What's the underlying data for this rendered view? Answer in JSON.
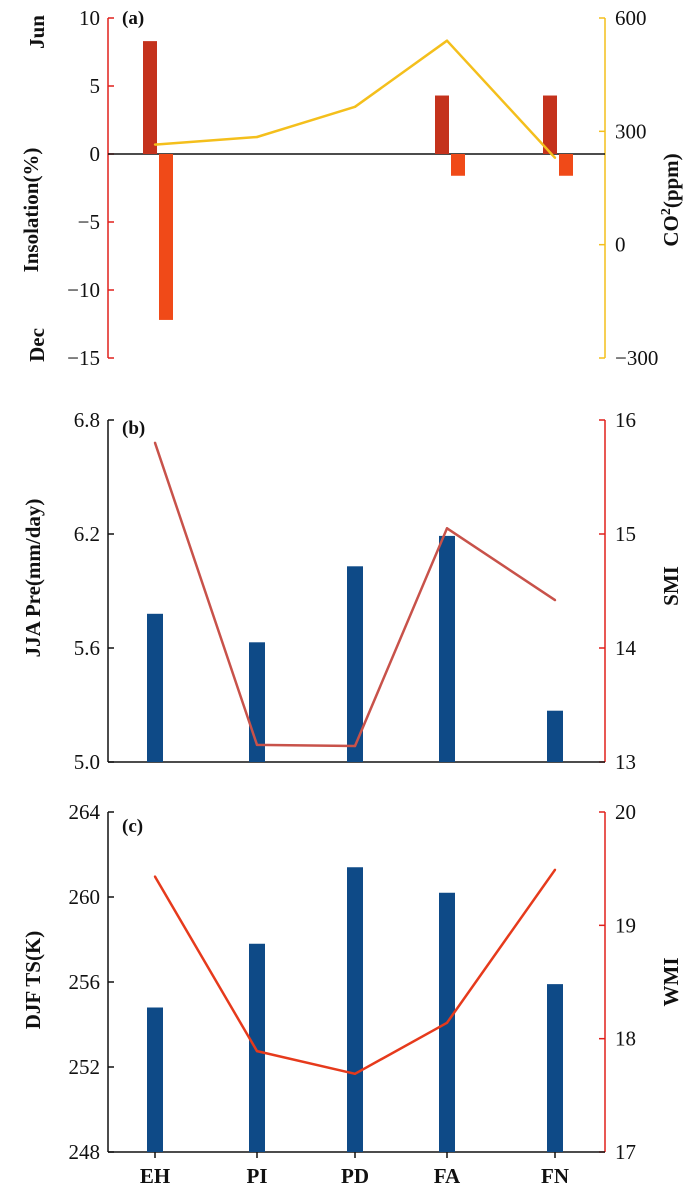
{
  "colors": {
    "jun_bar": "#c4321c",
    "dec_bar": "#f04a18",
    "co2_line": "#f4bf1c",
    "red_axis": "#e0201c",
    "blue_bar": "#0e4a87",
    "smi_line": "#c8524a",
    "wmi_line": "#e63a1c"
  },
  "chart_data": [
    {
      "type": "bar",
      "panel": "(a)",
      "categories": [
        "EH",
        "PI",
        "PD",
        "FA",
        "FN"
      ],
      "ylabel": "Insolation(%)",
      "ylim": [
        -15,
        10
      ],
      "yticks": [
        10,
        5,
        0,
        -5,
        -10,
        -15
      ],
      "ytick_labels": [
        "10",
        "5",
        "0",
        "−5",
        "−10",
        "−15"
      ],
      "side_labels": {
        "top": "Jun",
        "bottom": "Dec"
      },
      "series": [
        {
          "name": "Jun",
          "values": [
            8.3,
            null,
            null,
            4.3,
            4.3
          ]
        },
        {
          "name": "Dec",
          "values": [
            -12.2,
            null,
            null,
            -1.6,
            -1.6
          ]
        }
      ],
      "line_series": {
        "name": "CO2",
        "values": [
          265,
          285,
          365,
          540,
          230
        ]
      },
      "y2label_main": "CO",
      "y2label_sup": "2",
      "y2label_suffix": "(ppm)",
      "y2lim": [
        -300,
        600
      ],
      "y2ticks": [
        600,
        300,
        0,
        -300
      ],
      "y2tick_labels": [
        "600",
        "300",
        "0",
        "−300"
      ]
    },
    {
      "type": "bar",
      "panel": "(b)",
      "categories": [
        "EH",
        "PI",
        "PD",
        "FA",
        "FN"
      ],
      "ylabel": "JJA Pre(mm/day)",
      "ylim": [
        5.0,
        6.8
      ],
      "yticks": [
        6.8,
        6.2,
        5.6,
        5.0
      ],
      "ytick_labels": [
        "6.8",
        "6.2",
        "5.6",
        "5.0"
      ],
      "series": [
        {
          "name": "JJA Pre",
          "values": [
            5.78,
            5.63,
            6.03,
            6.19,
            5.27
          ]
        }
      ],
      "line_series": {
        "name": "SMI",
        "values": [
          15.8,
          13.15,
          13.14,
          15.05,
          14.42
        ]
      },
      "y2label": "SMI",
      "y2lim": [
        13,
        16
      ],
      "y2ticks": [
        16,
        15,
        14,
        13
      ],
      "y2tick_labels": [
        "16",
        "15",
        "14",
        "13"
      ]
    },
    {
      "type": "bar",
      "panel": "(c)",
      "categories": [
        "EH",
        "PI",
        "PD",
        "FA",
        "FN"
      ],
      "xtick_labels": [
        "EH",
        "PI",
        "PD",
        "FA",
        "FN"
      ],
      "ylabel": "DJF TS(K)",
      "ylim": [
        248,
        264
      ],
      "yticks": [
        264,
        260,
        256,
        252,
        248
      ],
      "ytick_labels": [
        "264",
        "260",
        "256",
        "252",
        "248"
      ],
      "series": [
        {
          "name": "DJF TS",
          "values": [
            254.8,
            257.8,
            261.4,
            260.2,
            255.9
          ]
        }
      ],
      "line_series": {
        "name": "WMI",
        "values": [
          19.43,
          17.89,
          17.69,
          18.14,
          19.49
        ]
      },
      "y2label": "WMI",
      "y2lim": [
        17,
        20
      ],
      "y2ticks": [
        20,
        19,
        18,
        17
      ],
      "y2tick_labels": [
        "20",
        "19",
        "18",
        "17"
      ]
    }
  ]
}
